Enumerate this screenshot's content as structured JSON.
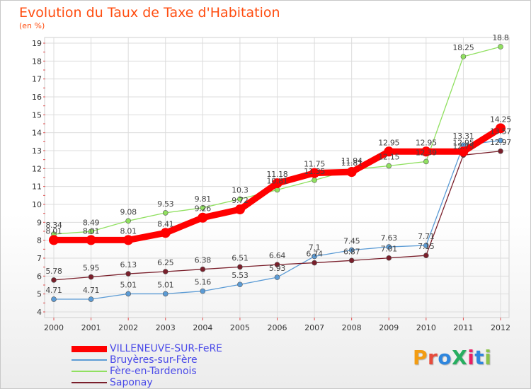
{
  "title": "Evolution du Taux de Taxe d'Habitation",
  "subtitle": "(en %)",
  "brand": {
    "text": "ProXiti",
    "letter_colors": [
      "#f39c12",
      "#e74c3c",
      "#2e86de",
      "#27ae60",
      "#e91e63",
      "#2e86de",
      "#8bc34a"
    ]
  },
  "chart_data": {
    "type": "line",
    "x": [
      2000,
      2001,
      2002,
      2003,
      2004,
      2005,
      2006,
      2007,
      2008,
      2009,
      2010,
      2011,
      2012
    ],
    "x_tick_labels": [
      "2000",
      "2001",
      "2002",
      "2003",
      "2004",
      "2005",
      "2006",
      "2007",
      "2008",
      "2009",
      "2010",
      "2011",
      "2012"
    ],
    "ylim": [
      4,
      19
    ],
    "y_ticks": [
      4,
      5,
      6,
      7,
      8,
      9,
      10,
      11,
      12,
      13,
      14,
      15,
      16,
      17,
      18,
      19
    ],
    "y_tick_labels": [
      "4",
      "5",
      "6",
      "7",
      "8",
      "9",
      "10",
      "11",
      "12",
      "13",
      "14",
      "15",
      "16",
      "17",
      "18",
      "19"
    ],
    "grid": true,
    "legend_position": "bottom-left",
    "series": [
      {
        "name": "VILLENEUVE-SUR-FeRE",
        "color": "#ff0000",
        "values": [
          8.01,
          8.01,
          8.01,
          8.41,
          9.26,
          9.72,
          11.18,
          11.75,
          11.81,
          12.95,
          12.95,
          12.95,
          14.25
        ],
        "labels": [
          "8.01",
          "8.01",
          "8.01",
          "8.41",
          "9.26",
          "9.72",
          "11.18",
          "11.75",
          "11.81",
          "12.95",
          "12.95",
          "12.95",
          "14.25"
        ]
      },
      {
        "name": "Bruyères-sur-Fère",
        "color": "#5b9bd5",
        "values": [
          4.71,
          4.71,
          5.01,
          5.01,
          5.16,
          5.53,
          5.93,
          7.1,
          7.45,
          7.63,
          7.71,
          13.31,
          13.57
        ],
        "labels": [
          "4.71",
          "4.71",
          "5.01",
          "5.01",
          "5.16",
          "5.53",
          "5.93",
          "7.1",
          "7.45",
          "7.63",
          "7.71",
          "13.31",
          "13.57"
        ]
      },
      {
        "name": "Fère-en-Tardenois",
        "color": "#90e060",
        "values": [
          8.34,
          8.49,
          9.08,
          9.53,
          9.81,
          10.3,
          10.81,
          11.35,
          11.94,
          12.15,
          12.39,
          18.25,
          18.8
        ],
        "labels": [
          "8.34",
          "8.49",
          "9.08",
          "9.53",
          "9.81",
          "10.3",
          "10.81",
          "11.35",
          "11.94",
          "12.15",
          "12.39",
          "18.25",
          "18.8"
        ]
      },
      {
        "name": "Saponay",
        "color": "#7a1f2b",
        "values": [
          5.78,
          5.95,
          6.13,
          6.25,
          6.38,
          6.51,
          6.64,
          6.74,
          6.87,
          7.01,
          7.15,
          12.75,
          12.97
        ],
        "labels": [
          "5.78",
          "5.95",
          "6.13",
          "6.25",
          "6.38",
          "6.51",
          "6.64",
          "6.74",
          "6.87",
          "7.01",
          "7.15",
          "12.75",
          "12.97"
        ]
      }
    ]
  }
}
